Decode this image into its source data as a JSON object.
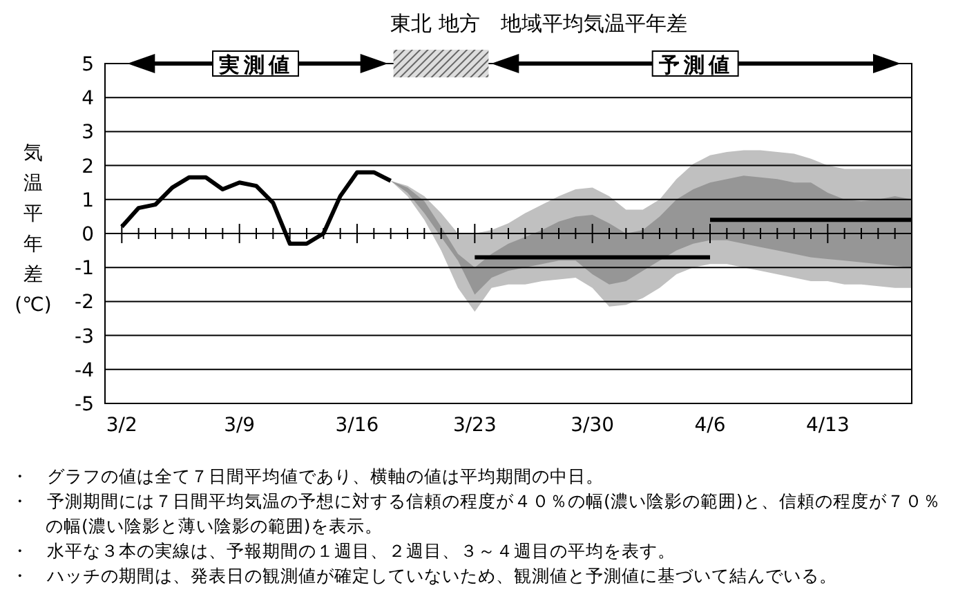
{
  "chart_data": {
    "type": "line",
    "title": "東北 地方　地域平均気温平年差",
    "ylabel": "気温平年差(℃)",
    "xlim": [
      "--03-01",
      "--04-18"
    ],
    "ylim": [
      -5,
      5
    ],
    "yticks": [
      -5,
      -4,
      -3,
      -2,
      -1,
      0,
      1,
      2,
      3,
      4,
      5
    ],
    "xticks": [
      {
        "value": "--03-02",
        "label": "3/2"
      },
      {
        "value": "--03-03",
        "label": null
      },
      {
        "value": "--03-04",
        "label": null
      },
      {
        "value": "--03-05",
        "label": null
      },
      {
        "value": "--03-06",
        "label": null
      },
      {
        "value": "--03-07",
        "label": null
      },
      {
        "value": "--03-08",
        "label": null
      },
      {
        "value": "--03-09",
        "label": "3/9"
      },
      {
        "value": "--03-10",
        "label": null
      },
      {
        "value": "--03-11",
        "label": null
      },
      {
        "value": "--03-12",
        "label": null
      },
      {
        "value": "--03-13",
        "label": null
      },
      {
        "value": "--03-14",
        "label": null
      },
      {
        "value": "--03-15",
        "label": null
      },
      {
        "value": "--03-16",
        "label": "3/16"
      },
      {
        "value": "--03-17",
        "label": null
      },
      {
        "value": "--03-18",
        "label": null
      },
      {
        "value": "--03-19",
        "label": null
      },
      {
        "value": "--03-20",
        "label": null
      },
      {
        "value": "--03-21",
        "label": null
      },
      {
        "value": "--03-22",
        "label": null
      },
      {
        "value": "--03-23",
        "label": "3/23"
      },
      {
        "value": "--03-24",
        "label": null
      },
      {
        "value": "--03-25",
        "label": null
      },
      {
        "value": "--03-26",
        "label": null
      },
      {
        "value": "--03-27",
        "label": null
      },
      {
        "value": "--03-28",
        "label": null
      },
      {
        "value": "--03-29",
        "label": null
      },
      {
        "value": "--03-30",
        "label": "3/30"
      },
      {
        "value": "--03-31",
        "label": null
      },
      {
        "value": "--04-01",
        "label": null
      },
      {
        "value": "--04-02",
        "label": null
      },
      {
        "value": "--04-03",
        "label": null
      },
      {
        "value": "--04-04",
        "label": null
      },
      {
        "value": "--04-05",
        "label": null
      },
      {
        "value": "--04-06",
        "label": "4/6"
      },
      {
        "value": "--04-07",
        "label": null
      },
      {
        "value": "--04-08",
        "label": null
      },
      {
        "value": "--04-09",
        "label": null
      },
      {
        "value": "--04-10",
        "label": null
      },
      {
        "value": "--04-11",
        "label": null
      },
      {
        "value": "--04-12",
        "label": null
      },
      {
        "value": "--04-13",
        "label": "4/13"
      },
      {
        "value": "--04-14",
        "label": null
      },
      {
        "value": "--04-15",
        "label": null
      },
      {
        "value": "--04-16",
        "label": null
      },
      {
        "value": "--04-17",
        "label": null
      }
    ],
    "grid": "y",
    "marker": "none",
    "line_style": "solid",
    "series": [
      {
        "type": "area",
        "color": "#c0c0c0",
        "x": [
          "--03-18",
          "--03-19",
          "--03-20",
          "--03-21",
          "--03-22",
          "--03-23",
          "--03-24",
          "--03-25",
          "--03-26",
          "--03-27",
          "--03-28",
          "--03-29",
          "--03-30",
          "--03-31",
          "--04-01",
          "--04-02",
          "--04-03",
          "--04-04",
          "--04-05",
          "--04-06",
          "--04-07",
          "--04-08",
          "--04-09",
          "--04-10",
          "--04-11",
          "--04-12",
          "--04-13",
          "--04-14",
          "--04-15",
          "--04-16",
          "--04-17",
          "--04-18"
        ],
        "values": [
          null,
          null,
          null,
          null,
          null,
          null,
          null,
          null,
          null,
          null,
          null,
          null,
          null,
          null,
          null,
          null,
          null,
          null,
          null,
          null,
          null,
          null,
          null,
          null,
          null,
          null,
          null,
          null,
          null,
          null,
          null,
          null
        ],
        "upper": [
          1.55,
          1.4,
          1.1,
          0.6,
          0.0,
          0.0,
          0.1,
          0.3,
          0.6,
          0.85,
          1.1,
          1.3,
          1.35,
          1.1,
          0.7,
          0.7,
          1.0,
          1.6,
          2.05,
          2.3,
          2.4,
          2.45,
          2.45,
          2.4,
          2.35,
          2.2,
          2.0,
          1.9,
          1.9,
          1.9,
          1.9,
          1.9
        ],
        "lower": [
          1.55,
          1.1,
          0.4,
          -0.5,
          -1.6,
          -2.3,
          -1.6,
          -1.5,
          -1.5,
          -1.4,
          -1.35,
          -1.3,
          -1.6,
          -2.15,
          -2.1,
          -1.9,
          -1.6,
          -1.2,
          -1.0,
          -0.9,
          -0.9,
          -1.0,
          -1.1,
          -1.2,
          -1.3,
          -1.4,
          -1.4,
          -1.5,
          -1.5,
          -1.55,
          -1.6,
          -1.6
        ]
      },
      {
        "type": "area",
        "color": "#969696",
        "x": [
          "--03-18",
          "--03-19",
          "--03-20",
          "--03-21",
          "--03-22",
          "--03-23",
          "--03-24",
          "--03-25",
          "--03-26",
          "--03-27",
          "--03-28",
          "--03-29",
          "--03-30",
          "--03-31",
          "--04-01",
          "--04-02",
          "--04-03",
          "--04-04",
          "--04-05",
          "--04-06",
          "--04-07",
          "--04-08",
          "--04-09",
          "--04-10",
          "--04-11",
          "--04-12",
          "--04-13",
          "--04-14",
          "--04-15",
          "--04-16",
          "--04-17",
          "--04-18"
        ],
        "values": [
          null,
          null,
          null,
          null,
          null,
          null,
          null,
          null,
          null,
          null,
          null,
          null,
          null,
          null,
          null,
          null,
          null,
          null,
          null,
          null,
          null,
          null,
          null,
          null,
          null,
          null,
          null,
          null,
          null,
          null,
          null,
          null
        ],
        "upper": [
          1.55,
          1.35,
          0.95,
          0.2,
          -0.6,
          -1.0,
          -0.6,
          -0.3,
          -0.1,
          0.1,
          0.35,
          0.5,
          0.55,
          0.3,
          0.0,
          0.1,
          0.5,
          1.0,
          1.3,
          1.5,
          1.6,
          1.7,
          1.65,
          1.6,
          1.5,
          1.5,
          1.2,
          1.0,
          0.95,
          1.0,
          1.1,
          1.0
        ],
        "lower": [
          1.55,
          1.2,
          0.6,
          -0.1,
          -0.8,
          -1.8,
          -1.3,
          -1.1,
          -1.0,
          -0.9,
          -0.8,
          -0.8,
          -1.2,
          -1.5,
          -1.4,
          -1.1,
          -0.8,
          -0.5,
          -0.3,
          -0.2,
          -0.2,
          -0.3,
          -0.4,
          -0.5,
          -0.6,
          -0.7,
          -0.75,
          -0.8,
          -0.85,
          -0.9,
          -0.95,
          -1.0
        ]
      },
      {
        "color": "#000000",
        "x": [
          "--03-02",
          "--03-03",
          "--03-04",
          "--03-05",
          "--03-06",
          "--03-07",
          "--03-08",
          "--03-09",
          "--03-10",
          "--03-11",
          "--03-12",
          "--03-13",
          "--03-14",
          "--03-15",
          "--03-16",
          "--03-17",
          "--03-18"
        ],
        "values": [
          0.2,
          0.75,
          0.85,
          1.35,
          1.65,
          1.65,
          1.3,
          1.5,
          1.4,
          0.9,
          -0.3,
          -0.3,
          0.0,
          1.1,
          1.8,
          1.8,
          1.55
        ]
      },
      {
        "color": "#000000",
        "x": [
          "--03-23",
          "--04-06"
        ],
        "values": [
          -0.7,
          -0.7
        ]
      },
      {
        "color": "#000000",
        "x": [
          "--04-06",
          "--04-13",
          "--04-18"
        ],
        "values": [
          0.4,
          0.4,
          0.4
        ]
      }
    ],
    "annotations": [
      "実測値",
      "予測値",
      "・　グラフの値は全て７日間平均値であり、横軸の値は平均期間の中日。",
      "・　予測期間には７日間平均気温の予想に対する信頼の程度が４０％の幅(濃い陰影の範囲)と、信頼の程度が７０％の幅(濃い陰影と薄い陰影の範囲)を表示。",
      "・　水平な３本の実線は、予報期間の１週目、２週目、３～４週目の平均を表す。",
      "・　ハッチの期間は、発表日の観測値が確定していないため、観測値と予測値に基づいて結んでいる。"
    ]
  }
}
